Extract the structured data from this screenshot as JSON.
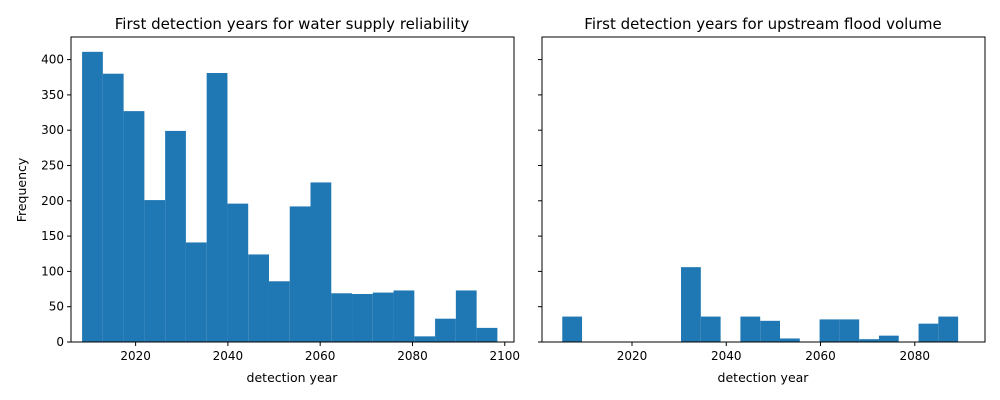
{
  "chart_data": [
    {
      "type": "bar",
      "title": "First detection years for water supply reliability",
      "xlabel": "detection year",
      "ylabel": "Frequency",
      "xlim": [
        2006,
        2102
      ],
      "ylim": [
        0,
        432
      ],
      "xticks": [
        2020,
        2040,
        2060,
        2080,
        2100
      ],
      "yticks": [
        0,
        50,
        100,
        150,
        200,
        250,
        300,
        350,
        400
      ],
      "bar_color": "#1f77b4",
      "bins": [
        {
          "x0": 2008.4,
          "x1": 2012.9,
          "value": 411
        },
        {
          "x0": 2012.9,
          "x1": 2017.4,
          "value": 380
        },
        {
          "x0": 2017.4,
          "x1": 2021.9,
          "value": 327
        },
        {
          "x0": 2021.9,
          "x1": 2026.4,
          "value": 201
        },
        {
          "x0": 2026.4,
          "x1": 2030.9,
          "value": 299
        },
        {
          "x0": 2030.9,
          "x1": 2035.4,
          "value": 141
        },
        {
          "x0": 2035.4,
          "x1": 2039.9,
          "value": 381
        },
        {
          "x0": 2039.9,
          "x1": 2044.4,
          "value": 196
        },
        {
          "x0": 2044.4,
          "x1": 2048.9,
          "value": 124
        },
        {
          "x0": 2048.9,
          "x1": 2053.4,
          "value": 86
        },
        {
          "x0": 2053.4,
          "x1": 2057.9,
          "value": 192
        },
        {
          "x0": 2057.9,
          "x1": 2062.4,
          "value": 226
        },
        {
          "x0": 2062.4,
          "x1": 2066.9,
          "value": 69
        },
        {
          "x0": 2066.9,
          "x1": 2071.4,
          "value": 68
        },
        {
          "x0": 2071.4,
          "x1": 2075.9,
          "value": 70
        },
        {
          "x0": 2075.9,
          "x1": 2080.4,
          "value": 73
        },
        {
          "x0": 2080.4,
          "x1": 2084.9,
          "value": 8
        },
        {
          "x0": 2084.9,
          "x1": 2089.4,
          "value": 33
        },
        {
          "x0": 2089.4,
          "x1": 2093.9,
          "value": 73
        },
        {
          "x0": 2093.9,
          "x1": 2098.4,
          "value": 20
        }
      ]
    },
    {
      "type": "bar",
      "title": "First detection years for upstream flood volume",
      "xlabel": "detection year",
      "ylabel": "",
      "xlim": [
        2000.9,
        2094.9
      ],
      "ylim": [
        0,
        432
      ],
      "xticks": [
        2020,
        2040,
        2060,
        2080
      ],
      "yticks": [
        0,
        50,
        100,
        150,
        200,
        250,
        300,
        350,
        400
      ],
      "shared_y": true,
      "bar_color": "#1f77b4",
      "bins": [
        {
          "x0": 2005.2,
          "x1": 2009.4,
          "value": 36
        },
        {
          "x0": 2009.4,
          "x1": 2013.6,
          "value": 0
        },
        {
          "x0": 2013.6,
          "x1": 2017.8,
          "value": 0
        },
        {
          "x0": 2017.8,
          "x1": 2022.0,
          "value": 0
        },
        {
          "x0": 2022.0,
          "x1": 2026.2,
          "value": 0
        },
        {
          "x0": 2026.2,
          "x1": 2030.4,
          "value": 0
        },
        {
          "x0": 2030.4,
          "x1": 2034.6,
          "value": 106
        },
        {
          "x0": 2034.6,
          "x1": 2038.8,
          "value": 36
        },
        {
          "x0": 2038.8,
          "x1": 2043.0,
          "value": 0
        },
        {
          "x0": 2043.0,
          "x1": 2047.2,
          "value": 36
        },
        {
          "x0": 2047.2,
          "x1": 2051.4,
          "value": 30
        },
        {
          "x0": 2051.4,
          "x1": 2055.6,
          "value": 5
        },
        {
          "x0": 2055.6,
          "x1": 2059.8,
          "value": 0
        },
        {
          "x0": 2059.8,
          "x1": 2064.0,
          "value": 32
        },
        {
          "x0": 2064.0,
          "x1": 2068.2,
          "value": 32
        },
        {
          "x0": 2068.2,
          "x1": 2072.4,
          "value": 4
        },
        {
          "x0": 2072.4,
          "x1": 2076.6,
          "value": 9
        },
        {
          "x0": 2076.6,
          "x1": 2080.8,
          "value": 0
        },
        {
          "x0": 2080.8,
          "x1": 2085.0,
          "value": 26
        },
        {
          "x0": 2085.0,
          "x1": 2089.2,
          "value": 36
        }
      ]
    }
  ]
}
